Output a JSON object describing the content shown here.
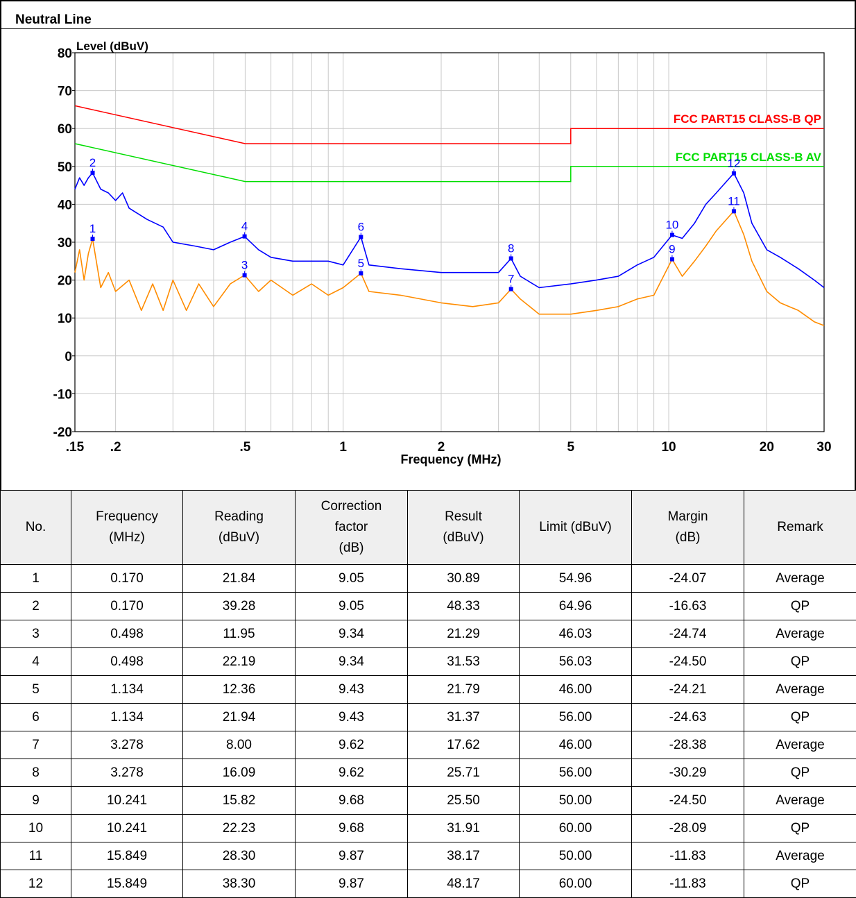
{
  "title": "Neutral Line",
  "chart_data": {
    "type": "line",
    "ylabel": "Level (dBuV)",
    "xlabel": "Frequency (MHz)",
    "xscale": "log",
    "xlim": [
      0.15,
      30
    ],
    "ylim": [
      -20,
      80
    ],
    "yticks": [
      -20,
      -10,
      0,
      10,
      20,
      30,
      40,
      50,
      60,
      70,
      80
    ],
    "xtick_labels": [
      {
        "value": 0.15,
        "label": ".15"
      },
      {
        "value": 0.2,
        "label": ".2"
      },
      {
        "value": 0.5,
        "label": ".5"
      },
      {
        "value": 1,
        "label": "1"
      },
      {
        "value": 2,
        "label": "2"
      },
      {
        "value": 5,
        "label": "5"
      },
      {
        "value": 10,
        "label": "10"
      },
      {
        "value": 20,
        "label": "20"
      },
      {
        "value": 30,
        "label": "30"
      }
    ],
    "grid": true,
    "limit_lines": [
      {
        "name": "FCC PART15 CLASS-B QP",
        "color": "#ff0000",
        "points": [
          [
            0.15,
            66
          ],
          [
            0.5,
            56
          ],
          [
            5,
            56
          ],
          [
            5,
            60
          ],
          [
            30,
            60
          ]
        ]
      },
      {
        "name": "FCC PART15 CLASS-B AV",
        "color": "#00dd00",
        "points": [
          [
            0.15,
            56
          ],
          [
            0.5,
            46
          ],
          [
            5,
            46
          ],
          [
            5,
            50
          ],
          [
            30,
            50
          ]
        ]
      }
    ],
    "series": [
      {
        "color": "#0000ff",
        "values": [
          [
            0.15,
            44
          ],
          [
            0.155,
            47
          ],
          [
            0.16,
            45
          ],
          [
            0.165,
            47
          ],
          [
            0.17,
            48.3
          ],
          [
            0.18,
            44
          ],
          [
            0.19,
            43
          ],
          [
            0.2,
            41
          ],
          [
            0.21,
            43
          ],
          [
            0.22,
            39
          ],
          [
            0.25,
            36
          ],
          [
            0.28,
            34
          ],
          [
            0.3,
            30
          ],
          [
            0.35,
            29
          ],
          [
            0.4,
            28
          ],
          [
            0.45,
            30
          ],
          [
            0.498,
            31.5
          ],
          [
            0.55,
            28
          ],
          [
            0.6,
            26
          ],
          [
            0.7,
            25
          ],
          [
            0.8,
            25
          ],
          [
            0.9,
            25
          ],
          [
            1.0,
            24
          ],
          [
            1.134,
            31.4
          ],
          [
            1.2,
            24
          ],
          [
            1.5,
            23
          ],
          [
            2.0,
            22
          ],
          [
            2.5,
            22
          ],
          [
            3.0,
            22
          ],
          [
            3.278,
            25.7
          ],
          [
            3.5,
            21
          ],
          [
            4.0,
            18
          ],
          [
            5.0,
            19
          ],
          [
            6.0,
            20
          ],
          [
            7.0,
            21
          ],
          [
            8.0,
            24
          ],
          [
            9.0,
            26
          ],
          [
            10.241,
            31.9
          ],
          [
            11.0,
            31
          ],
          [
            12.0,
            35
          ],
          [
            13.0,
            40
          ],
          [
            14.0,
            43
          ],
          [
            15.849,
            48.2
          ],
          [
            17.0,
            43
          ],
          [
            18.0,
            35
          ],
          [
            20.0,
            28
          ],
          [
            22.0,
            26
          ],
          [
            25.0,
            23
          ],
          [
            28.0,
            20
          ],
          [
            30.0,
            18
          ]
        ]
      },
      {
        "color": "#ff8c00",
        "values": [
          [
            0.15,
            22
          ],
          [
            0.155,
            28
          ],
          [
            0.16,
            20
          ],
          [
            0.165,
            27
          ],
          [
            0.17,
            30.9
          ],
          [
            0.18,
            18
          ],
          [
            0.19,
            22
          ],
          [
            0.2,
            17
          ],
          [
            0.22,
            20
          ],
          [
            0.24,
            12
          ],
          [
            0.26,
            19
          ],
          [
            0.28,
            12
          ],
          [
            0.3,
            20
          ],
          [
            0.33,
            12
          ],
          [
            0.36,
            19
          ],
          [
            0.4,
            13
          ],
          [
            0.45,
            19
          ],
          [
            0.498,
            21.3
          ],
          [
            0.55,
            17
          ],
          [
            0.6,
            20
          ],
          [
            0.7,
            16
          ],
          [
            0.8,
            19
          ],
          [
            0.9,
            16
          ],
          [
            1.0,
            18
          ],
          [
            1.134,
            21.8
          ],
          [
            1.2,
            17
          ],
          [
            1.5,
            16
          ],
          [
            2.0,
            14
          ],
          [
            2.5,
            13
          ],
          [
            3.0,
            14
          ],
          [
            3.278,
            17.6
          ],
          [
            3.5,
            15
          ],
          [
            4.0,
            11
          ],
          [
            5.0,
            11
          ],
          [
            6.0,
            12
          ],
          [
            7.0,
            13
          ],
          [
            8.0,
            15
          ],
          [
            9.0,
            16
          ],
          [
            10.241,
            25.5
          ],
          [
            11.0,
            21
          ],
          [
            12.0,
            25
          ],
          [
            13.0,
            29
          ],
          [
            14.0,
            33
          ],
          [
            15.849,
            38.2
          ],
          [
            17.0,
            32
          ],
          [
            18.0,
            25
          ],
          [
            20.0,
            17
          ],
          [
            22.0,
            14
          ],
          [
            25.0,
            12
          ],
          [
            28.0,
            9
          ],
          [
            30.0,
            8
          ]
        ]
      }
    ],
    "markers": [
      {
        "label": "1",
        "x": 0.17,
        "y": 30.89,
        "color": "#0000ff"
      },
      {
        "label": "2",
        "x": 0.17,
        "y": 48.33,
        "color": "#0000ff"
      },
      {
        "label": "3",
        "x": 0.498,
        "y": 21.29,
        "color": "#0000ff"
      },
      {
        "label": "4",
        "x": 0.498,
        "y": 31.53,
        "color": "#0000ff"
      },
      {
        "label": "5",
        "x": 1.134,
        "y": 21.79,
        "color": "#0000ff"
      },
      {
        "label": "6",
        "x": 1.134,
        "y": 31.37,
        "color": "#0000ff"
      },
      {
        "label": "7",
        "x": 3.278,
        "y": 17.62,
        "color": "#0000ff"
      },
      {
        "label": "8",
        "x": 3.278,
        "y": 25.71,
        "color": "#0000ff"
      },
      {
        "label": "9",
        "x": 10.241,
        "y": 25.5,
        "color": "#0000ff"
      },
      {
        "label": "10",
        "x": 10.241,
        "y": 31.91,
        "color": "#0000ff"
      },
      {
        "label": "11",
        "x": 15.849,
        "y": 38.17,
        "color": "#0000ff"
      },
      {
        "label": "12",
        "x": 15.849,
        "y": 48.17,
        "color": "#0000ff"
      }
    ]
  },
  "table": {
    "headers": [
      {
        "lines": [
          "No."
        ]
      },
      {
        "lines": [
          "Frequency",
          "(MHz)"
        ]
      },
      {
        "lines": [
          "Reading",
          "(dBuV)"
        ]
      },
      {
        "lines": [
          "Correction",
          "factor",
          "(dB)"
        ]
      },
      {
        "lines": [
          "Result",
          "(dBuV)"
        ]
      },
      {
        "lines": [
          "Limit (dBuV)"
        ]
      },
      {
        "lines": [
          "Margin",
          "(dB)"
        ]
      },
      {
        "lines": [
          "Remark"
        ]
      }
    ],
    "rows": [
      [
        "1",
        "0.170",
        "21.84",
        "9.05",
        "30.89",
        "54.96",
        "-24.07",
        "Average"
      ],
      [
        "2",
        "0.170",
        "39.28",
        "9.05",
        "48.33",
        "64.96",
        "-16.63",
        "QP"
      ],
      [
        "3",
        "0.498",
        "11.95",
        "9.34",
        "21.29",
        "46.03",
        "-24.74",
        "Average"
      ],
      [
        "4",
        "0.498",
        "22.19",
        "9.34",
        "31.53",
        "56.03",
        "-24.50",
        "QP"
      ],
      [
        "5",
        "1.134",
        "12.36",
        "9.43",
        "21.79",
        "46.00",
        "-24.21",
        "Average"
      ],
      [
        "6",
        "1.134",
        "21.94",
        "9.43",
        "31.37",
        "56.00",
        "-24.63",
        "QP"
      ],
      [
        "7",
        "3.278",
        "8.00",
        "9.62",
        "17.62",
        "46.00",
        "-28.38",
        "Average"
      ],
      [
        "8",
        "3.278",
        "16.09",
        "9.62",
        "25.71",
        "56.00",
        "-30.29",
        "QP"
      ],
      [
        "9",
        "10.241",
        "15.82",
        "9.68",
        "25.50",
        "50.00",
        "-24.50",
        "Average"
      ],
      [
        "10",
        "10.241",
        "22.23",
        "9.68",
        "31.91",
        "60.00",
        "-28.09",
        "QP"
      ],
      [
        "11",
        "15.849",
        "28.30",
        "9.87",
        "38.17",
        "50.00",
        "-11.83",
        "Average"
      ],
      [
        "12",
        "15.849",
        "38.30",
        "9.87",
        "48.17",
        "60.00",
        "-11.83",
        "QP"
      ]
    ]
  }
}
